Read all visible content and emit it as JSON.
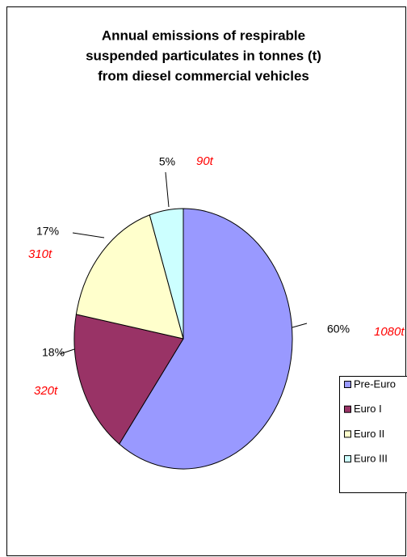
{
  "chart_data": {
    "type": "pie",
    "title": [
      "Annual emissions of respirable",
      "suspended particulates in tonnes (t)",
      "from diesel commercial vehicles"
    ],
    "categories": [
      "Pre-Euro",
      "Euro I",
      "Euro II",
      "Euro III"
    ],
    "values": [
      60,
      18,
      17,
      5
    ],
    "value_labels": [
      "60%",
      "18%",
      "17%",
      "5%"
    ],
    "annotations": [
      "1080t",
      "320t",
      "310t",
      "90t"
    ],
    "colors": [
      "#9999ff",
      "#993366",
      "#ffffcc",
      "#ccffff"
    ],
    "legend": "right"
  }
}
